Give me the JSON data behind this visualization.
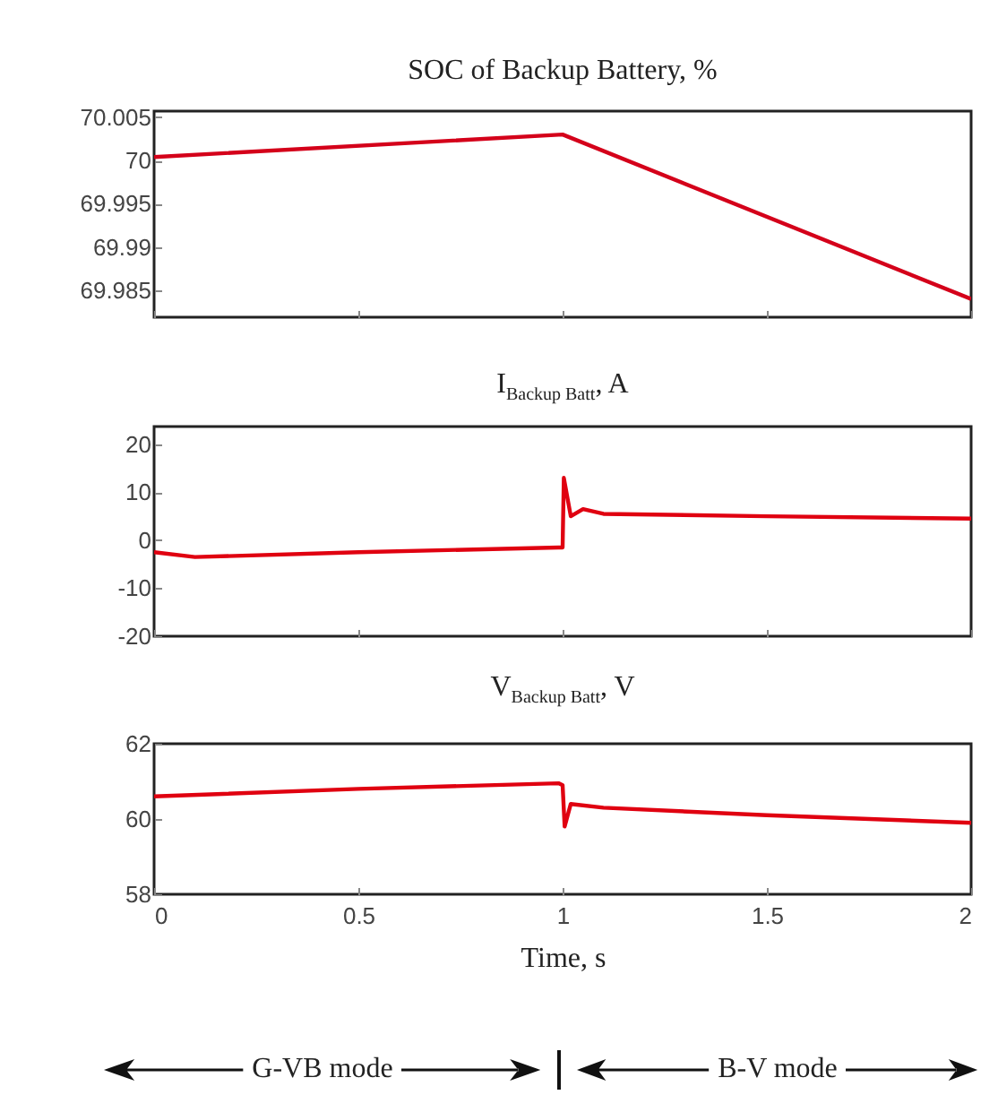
{
  "chart_data": [
    {
      "type": "line",
      "title": "SOC of Backup Battery, %",
      "x": [
        0,
        1,
        2
      ],
      "xlim": [
        0,
        2
      ],
      "xticks": [
        0,
        0.5,
        1,
        1.5,
        2
      ],
      "ylim": [
        69.9819,
        70.0057
      ],
      "yticks": [
        69.985,
        69.99,
        69.995,
        70,
        70.005
      ],
      "tick_labels": "y",
      "series": [
        {
          "color": "#d4001a",
          "values": [
            70.0004,
            70.003,
            69.984
          ]
        }
      ]
    },
    {
      "type": "line",
      "title": "I$_{Backup Batt}$, A",
      "x": [
        0,
        0.1,
        0.5,
        0.99,
        1.0,
        1.003,
        1.02,
        1.05,
        1.1,
        1.5,
        2
      ],
      "xlim": [
        0,
        2
      ],
      "xticks": [
        0,
        0.5,
        1,
        1.5,
        2
      ],
      "ylim": [
        -20,
        23.7
      ],
      "yticks": [
        -20,
        -10,
        0,
        10,
        20
      ],
      "tick_labels": "y",
      "series": [
        {
          "color": "#e00010",
          "values": [
            -2.5,
            -3.5,
            -2.5,
            -1.5,
            -1.5,
            13,
            5,
            6.5,
            5.5,
            5,
            4.5
          ]
        }
      ]
    },
    {
      "type": "line",
      "title": "V$_{Backup Batt}$, V",
      "xlabel": "Time, s",
      "x": [
        0,
        0.5,
        0.99,
        1.0,
        1.005,
        1.02,
        1.1,
        1.5,
        2
      ],
      "xlim": [
        0,
        2
      ],
      "xticks": [
        0,
        0.5,
        1,
        1.5,
        2
      ],
      "ylim": [
        58,
        62
      ],
      "yticks": [
        58,
        60,
        62
      ],
      "annotations": [
        "G-VB mode",
        "B-V mode"
      ],
      "series": [
        {
          "color": "#e00010",
          "values": [
            60.6,
            60.8,
            60.95,
            60.9,
            59.8,
            60.4,
            60.3,
            60.1,
            59.9
          ]
        }
      ]
    }
  ]
}
